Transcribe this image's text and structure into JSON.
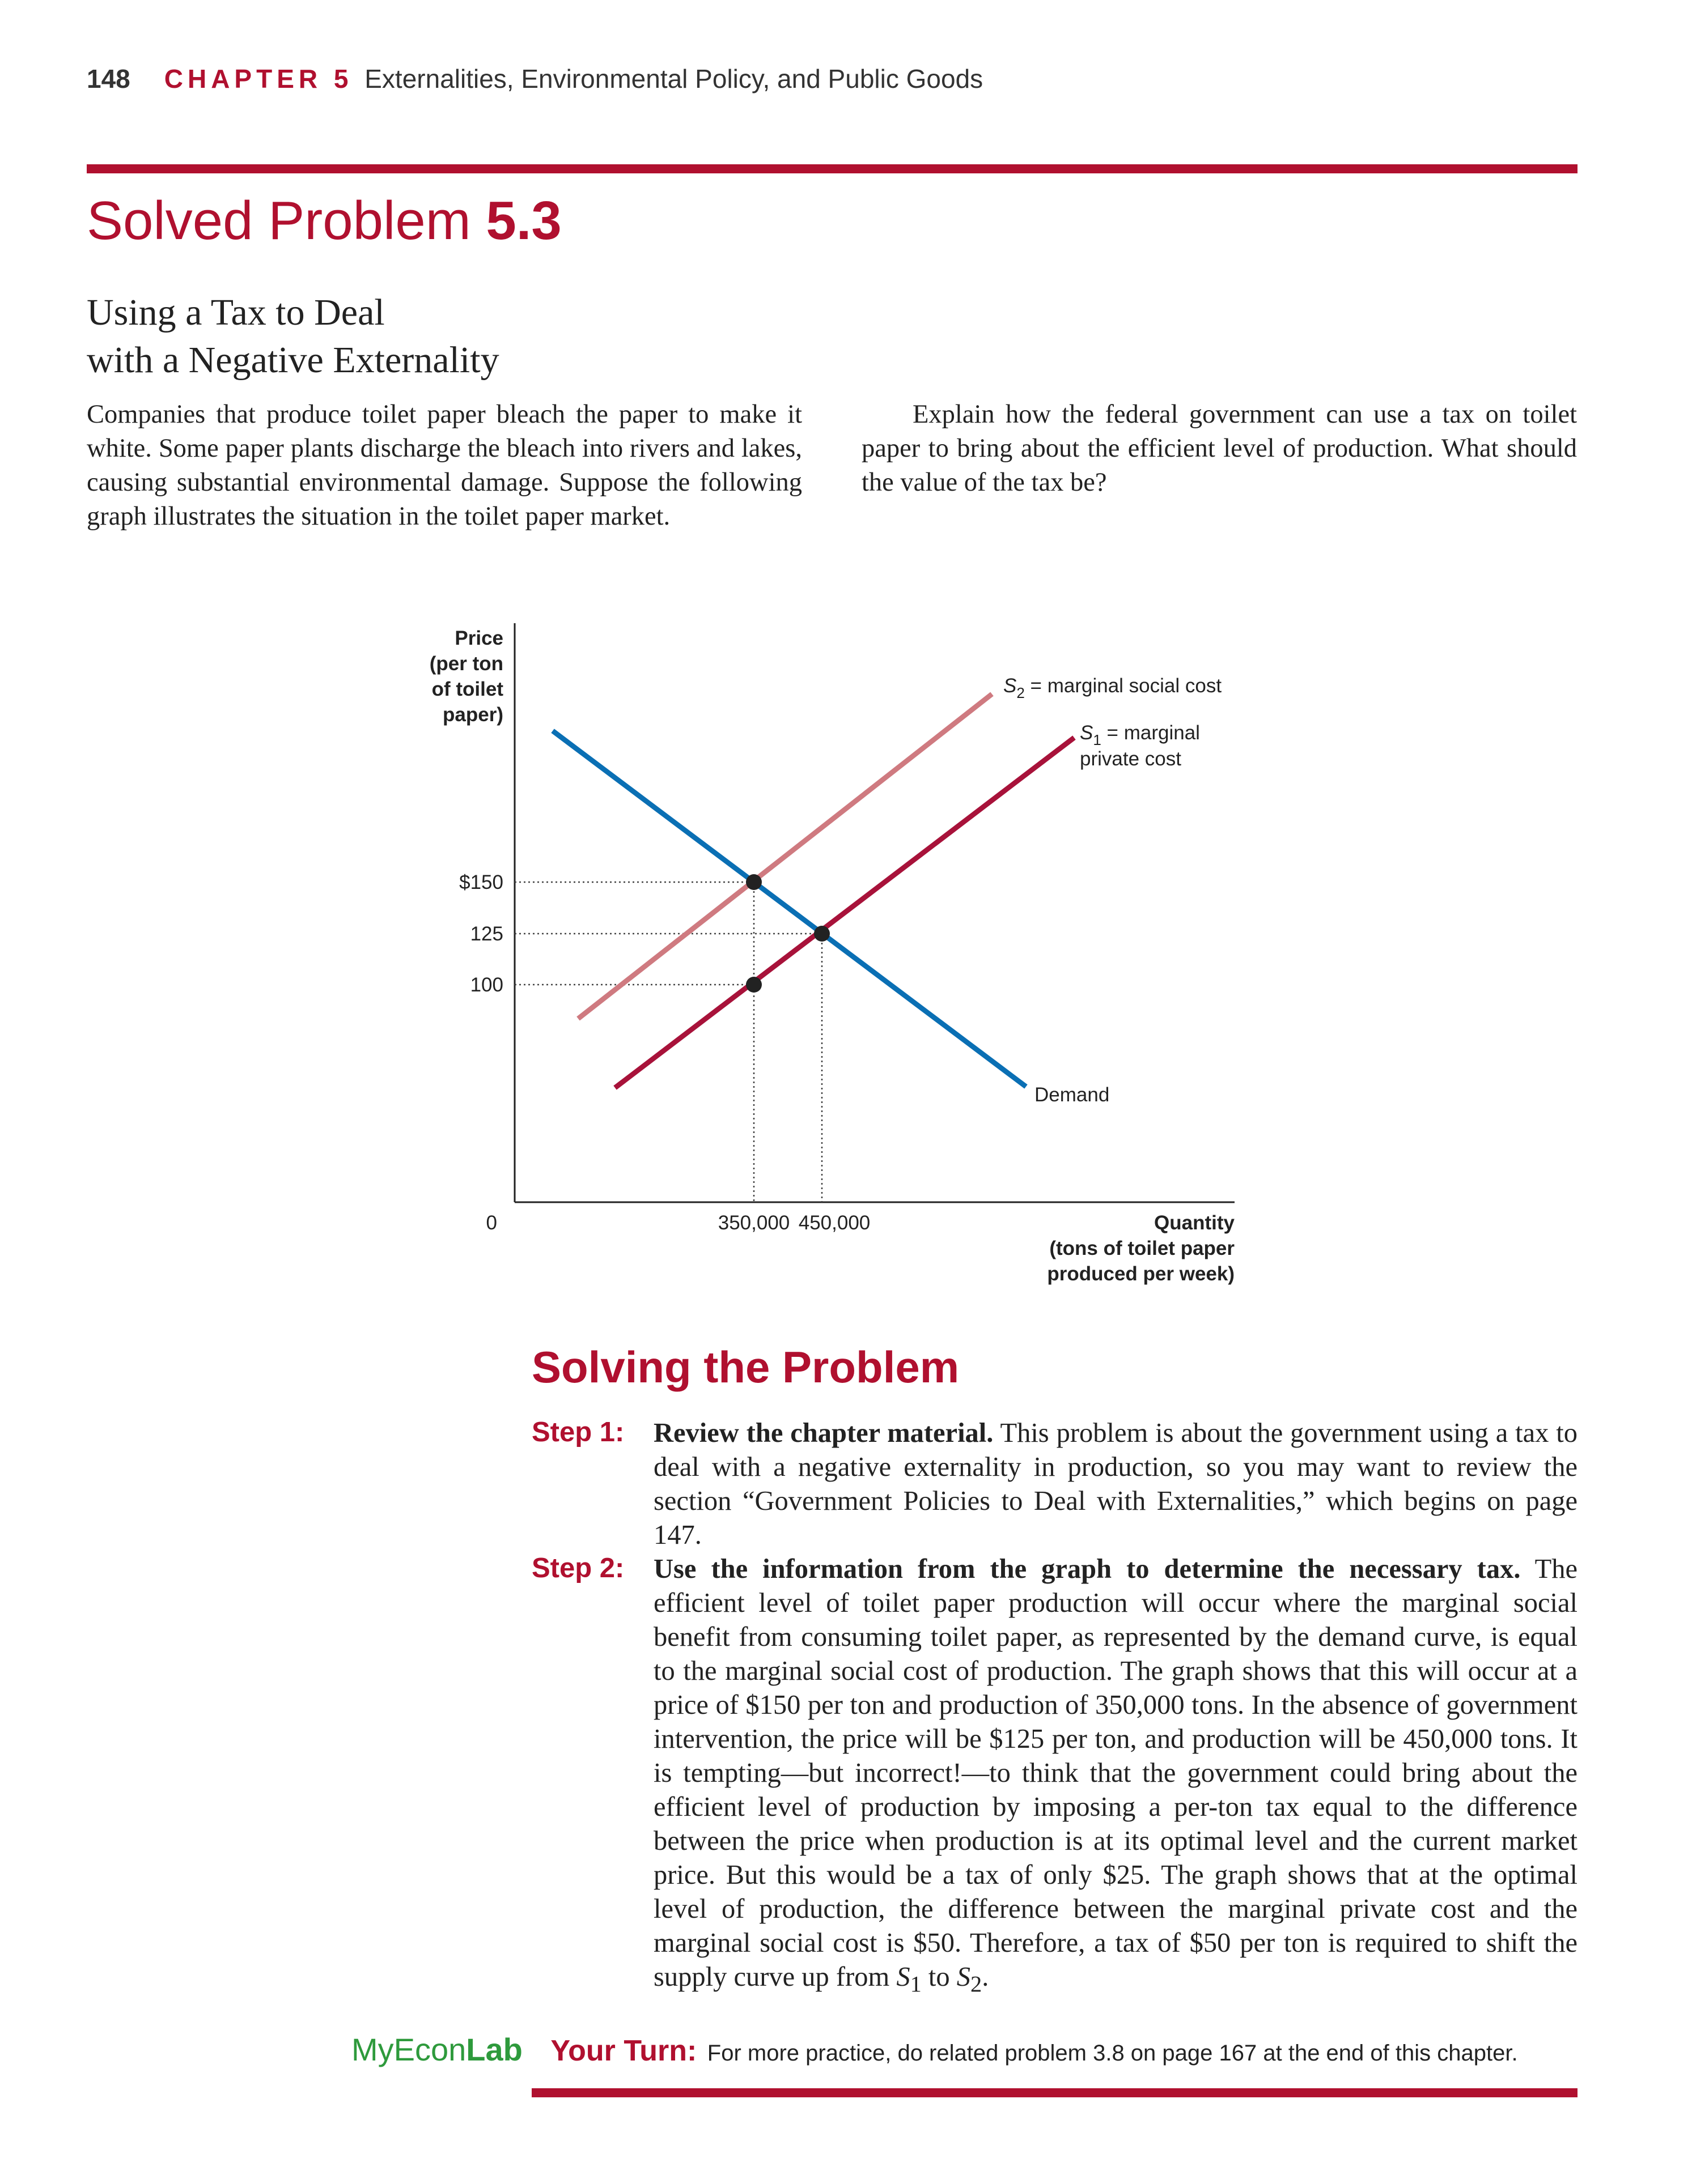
{
  "header": {
    "page_number": "148",
    "chapter_label": "CHAPTER 5",
    "chapter_title": "Externalities, Environmental Policy, and Public Goods"
  },
  "solved_problem": {
    "title_prefix": "Solved Problem",
    "title_number": "5.3",
    "subtitle_line1": "Using a Tax to Deal",
    "subtitle_line2": "with a Negative Externality",
    "left_paragraph": "Companies that produce toilet paper bleach the paper to make it white. Some paper plants discharge the bleach into rivers and lakes, causing substantial environmental damage. Suppose the following graph illustrates the situation in the toilet paper market.",
    "right_paragraph": "Explain how the federal government can use a tax on toilet paper to bring about the efficient level of production. What should the value of the tax be?"
  },
  "graph": {
    "y_axis_label_lines": [
      "Price",
      "(per ton",
      "of toilet",
      "paper)"
    ],
    "x_axis_label_lines": [
      "Quantity",
      "(tons of toilet paper",
      "produced per week)"
    ],
    "origin_label": "0",
    "y_ticks": [
      "$150",
      "125",
      "100"
    ],
    "x_ticks": [
      "350,000",
      "450,000"
    ],
    "s2_label": {
      "symbol": "S",
      "sub": "2",
      "text": " = marginal social cost"
    },
    "s1_label": {
      "symbol": "S",
      "sub": "1",
      "text": " = marginal",
      "line2": "private cost"
    },
    "demand_label": "Demand",
    "colors": {
      "demand": "#0a6fb4",
      "s1": "#a8123a",
      "s2": "#cf7a80",
      "points": "#222222"
    }
  },
  "solving": {
    "title": "Solving the Problem",
    "steps": [
      {
        "label": "Step 1:",
        "bold": "Review the chapter material.",
        "text": " This problem is about the government using a tax to deal with a negative externality in production, so you may want to review the section “Government Policies to Deal with Externalities,” which begins on page 147."
      },
      {
        "label": "Step 2:",
        "bold": "Use the information from the graph to determine the necessary tax.",
        "text": " The efficient level of toilet paper production will occur where the marginal social benefit from consuming toilet paper, as represented by the demand curve, is equal to the marginal social cost of production. The graph shows that this will occur at a price of $150 per ton and production of 350,000 tons. In the absence of government intervention, the price will be $125 per ton, and production will be 450,000 tons. It is tempting—but incorrect!—to think that the government could bring about the efficient level of production by imposing a per-ton tax equal to the difference between the price when production is at its optimal level and the current market price. But this would be a tax of only $25. The graph shows that at the optimal level of production, the difference between the marginal private cost and the marginal social cost is $50. Therefore, a tax of $50 per ton is required to shift the supply curve up from ",
        "s1": "S",
        "s1_sub": "1",
        "mid": " to ",
        "s2": "S",
        "s2_sub": "2",
        "end": "."
      }
    ]
  },
  "footer": {
    "myecon": "MyEcon",
    "lab": "Lab",
    "your_turn_label": "Your Turn:",
    "your_turn_text": "For more practice, do related problem 3.8 on page 167 at the end of this chapter."
  }
}
